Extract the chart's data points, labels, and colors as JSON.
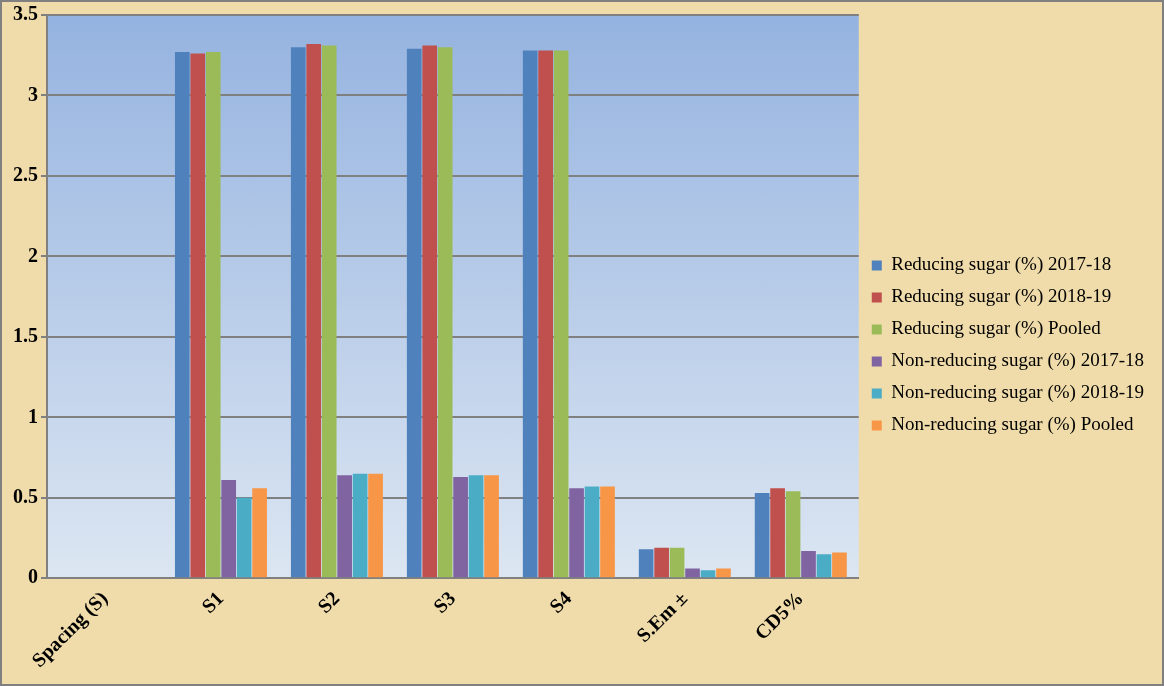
{
  "chart_data": {
    "type": "bar",
    "categories": [
      "Spacing (S)",
      "S1",
      "S2",
      "S3",
      "S4",
      "S.Em ±",
      "CD5%"
    ],
    "series": [
      {
        "name": "Reducing sugar (%) 2017-18",
        "color": "#4f81bd",
        "values": [
          null,
          3.27,
          3.3,
          3.29,
          3.28,
          0.18,
          0.53
        ]
      },
      {
        "name": "Reducing sugar (%) 2018-19",
        "color": "#c0504d",
        "values": [
          null,
          3.26,
          3.32,
          3.31,
          3.28,
          0.19,
          0.56
        ]
      },
      {
        "name": "Reducing sugar (%) Pooled",
        "color": "#9bbb59",
        "values": [
          null,
          3.27,
          3.31,
          3.3,
          3.28,
          0.19,
          0.54
        ]
      },
      {
        "name": "Non-reducing sugar (%) 2017-18",
        "color": "#8064a2",
        "values": [
          null,
          0.61,
          0.64,
          0.63,
          0.56,
          0.06,
          0.17
        ]
      },
      {
        "name": "Non-reducing sugar (%) 2018-19",
        "color": "#4bacc6",
        "values": [
          null,
          0.5,
          0.65,
          0.64,
          0.57,
          0.05,
          0.15
        ]
      },
      {
        "name": "Non-reducing sugar (%) Pooled",
        "color": "#f79646",
        "values": [
          null,
          0.56,
          0.65,
          0.64,
          0.57,
          0.06,
          0.16
        ]
      }
    ],
    "ylim": [
      0,
      3.5
    ],
    "yticks": [
      0,
      0.5,
      1,
      1.5,
      2,
      2.5,
      3,
      3.5
    ],
    "grid": "y",
    "legend": "right"
  }
}
